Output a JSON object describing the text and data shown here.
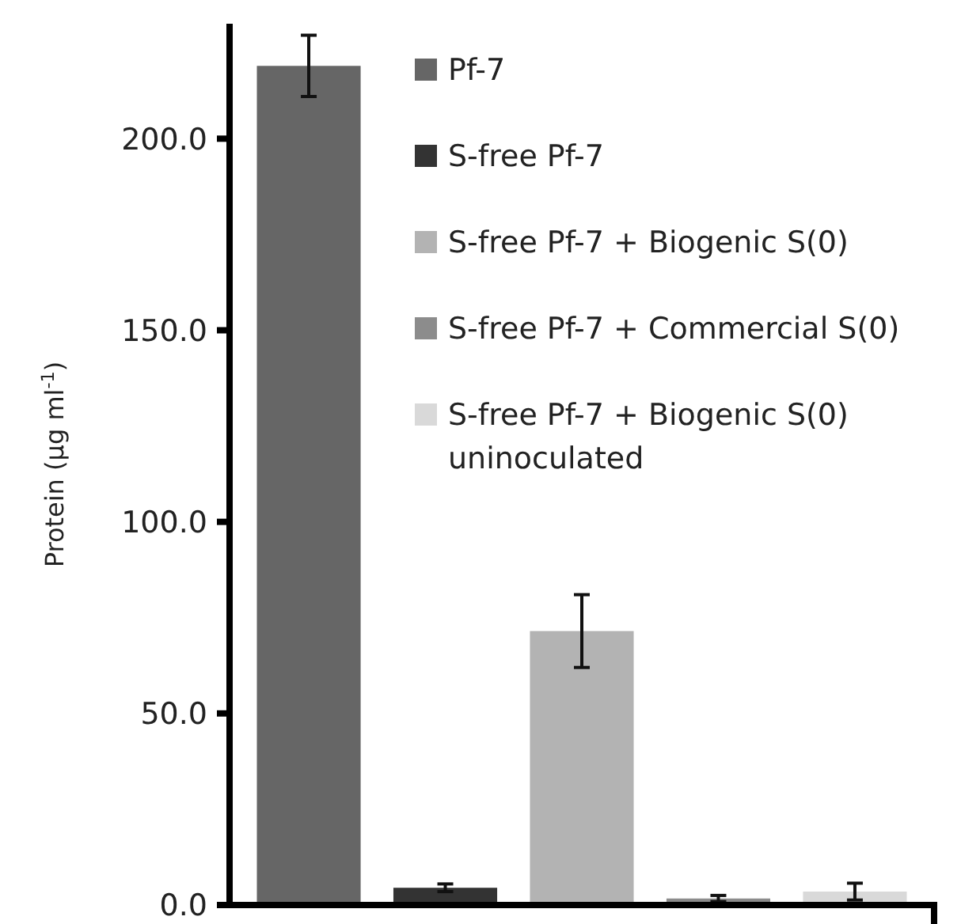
{
  "chart_data": {
    "type": "bar",
    "ylabel": "Protein (μg ml$^{-1}$)",
    "categories": [
      null,
      null,
      null,
      null,
      null
    ],
    "series": [
      {
        "name": "Pf-7",
        "color": "#666666",
        "values": [
          219,
          null,
          null,
          null,
          null
        ],
        "errors": [
          8,
          null,
          null,
          null,
          null
        ]
      },
      {
        "name": "S-free Pf-7",
        "color": "#333333",
        "values": [
          null,
          4.5,
          null,
          null,
          null
        ],
        "errors": [
          null,
          1,
          null,
          null,
          null
        ]
      },
      {
        "name": "S-free Pf-7 + Biogenic S(0)",
        "color": "#b3b3b3",
        "values": [
          null,
          null,
          71.5,
          null,
          null
        ],
        "errors": [
          null,
          null,
          9.5,
          null,
          null
        ]
      },
      {
        "name": "S-free Pf-7 + Commercial S(0)",
        "color": "#8c8c8c",
        "values": [
          null,
          null,
          null,
          1.7,
          null
        ],
        "errors": [
          null,
          null,
          null,
          0.8,
          null
        ]
      },
      {
        "name": "S-free Pf-7 + Biogenic S(0) uninoculated",
        "color": "#d9d9d9",
        "values": [
          null,
          null,
          null,
          null,
          3.5
        ],
        "errors": [
          null,
          null,
          null,
          null,
          2.2
        ]
      }
    ],
    "ylim": [
      0,
      230
    ],
    "yticks": [
      {
        "value": 0,
        "label": "0.0"
      },
      {
        "value": 50,
        "label": "50.0"
      },
      {
        "value": 100,
        "label": "100.0"
      },
      {
        "value": 150,
        "label": "150.0"
      },
      {
        "value": 200,
        "label": "200.0"
      }
    ],
    "grid": false,
    "legend": "top right"
  }
}
